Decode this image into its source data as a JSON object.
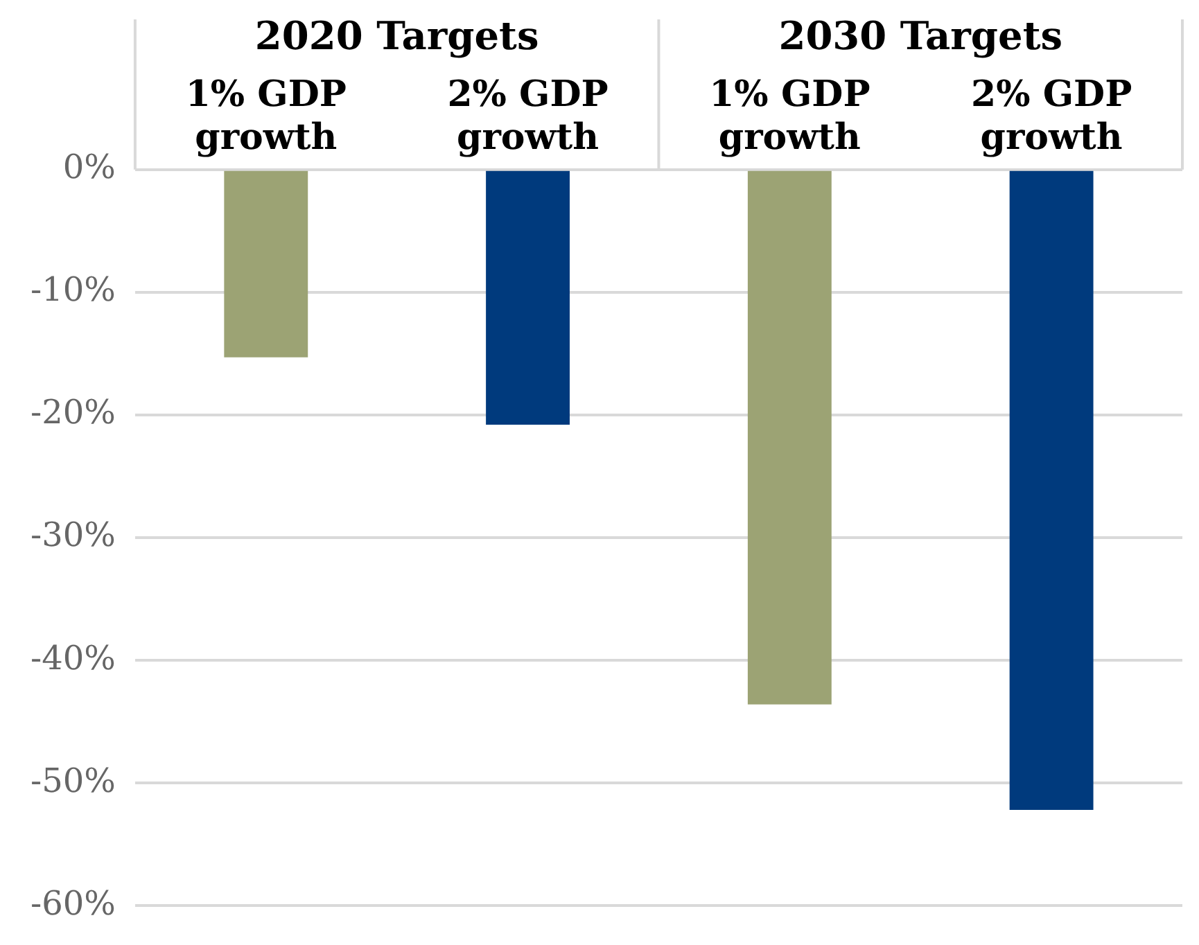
{
  "chart_data": {
    "type": "bar",
    "categories": [
      "1% GDP growth",
      "2% GDP growth",
      "1% GDP growth",
      "2% GDP growth"
    ],
    "values": [
      -15.3,
      -20.8,
      -43.6,
      -52.2
    ],
    "colors": [
      "#9ca374",
      "#003a7d",
      "#9ca374",
      "#003a7d"
    ],
    "ylim": [
      -60,
      0
    ],
    "yticks": [
      {
        "value": -60,
        "label": "-60%"
      },
      {
        "value": -50,
        "label": "-50%"
      },
      {
        "value": -40,
        "label": "-40%"
      },
      {
        "value": -30,
        "label": "-30%"
      },
      {
        "value": -20,
        "label": "-20%"
      },
      {
        "value": -10,
        "label": "-10%"
      },
      {
        "value": 0,
        "label": "0%"
      }
    ],
    "annotations": [
      "2020 Targets",
      "2030 Targets"
    ],
    "grid": "y",
    "legend": false
  }
}
